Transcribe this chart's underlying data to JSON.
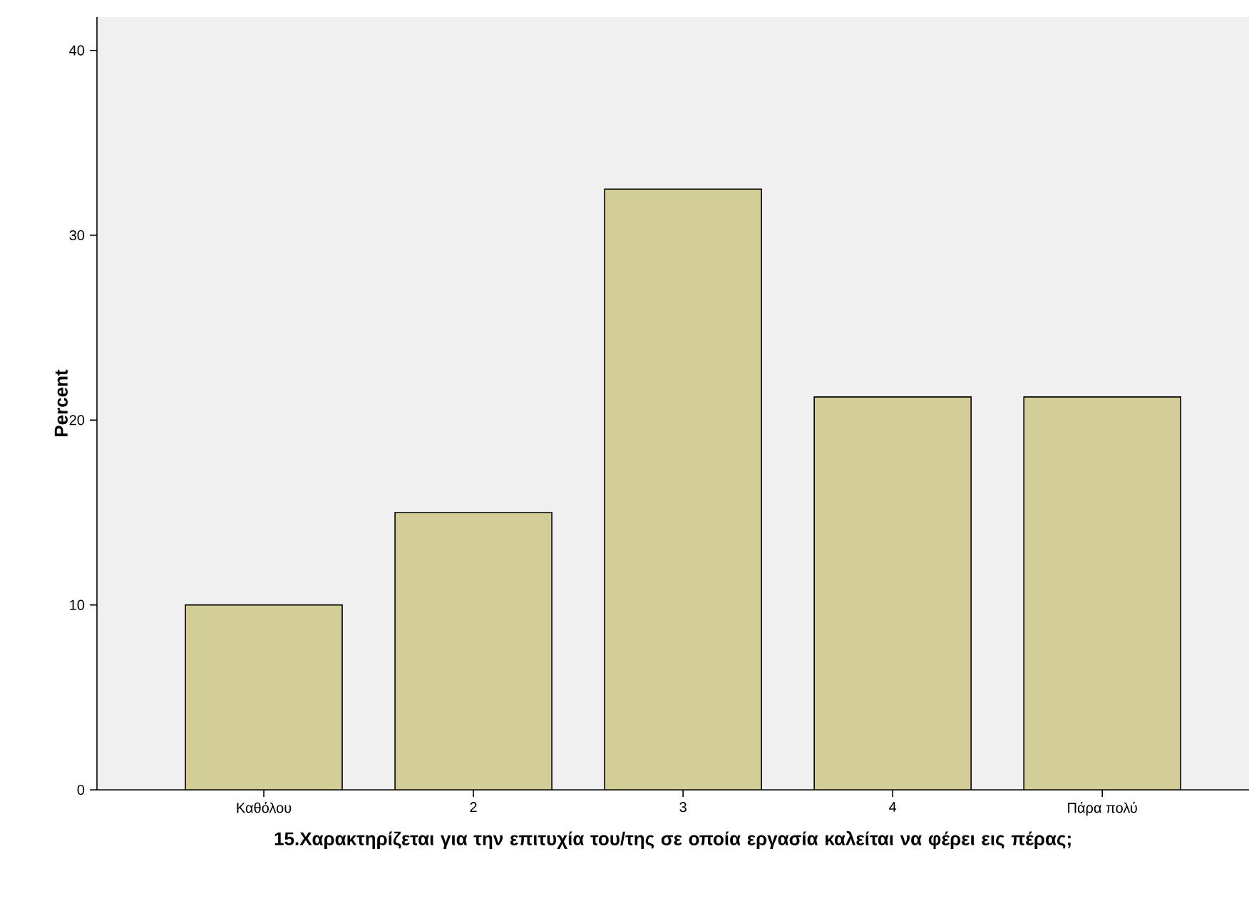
{
  "chart_data": {
    "type": "bar",
    "xlabel": "15.Χαρακτηρίζεται για την επιτυχία του/της σε οποία εργασία καλείται να φέρει εις πέρας;",
    "ylabel": "Percent",
    "categories": [
      "Καθόλου",
      "2",
      "3",
      "4",
      "Πάρα πολύ"
    ],
    "values": [
      10,
      15,
      32.5,
      21.25,
      21.25
    ],
    "color": "#d3cd98",
    "ylim": [
      0,
      41.8
    ],
    "yticks": [
      0,
      10,
      20,
      30,
      40
    ],
    "grid": false
  }
}
